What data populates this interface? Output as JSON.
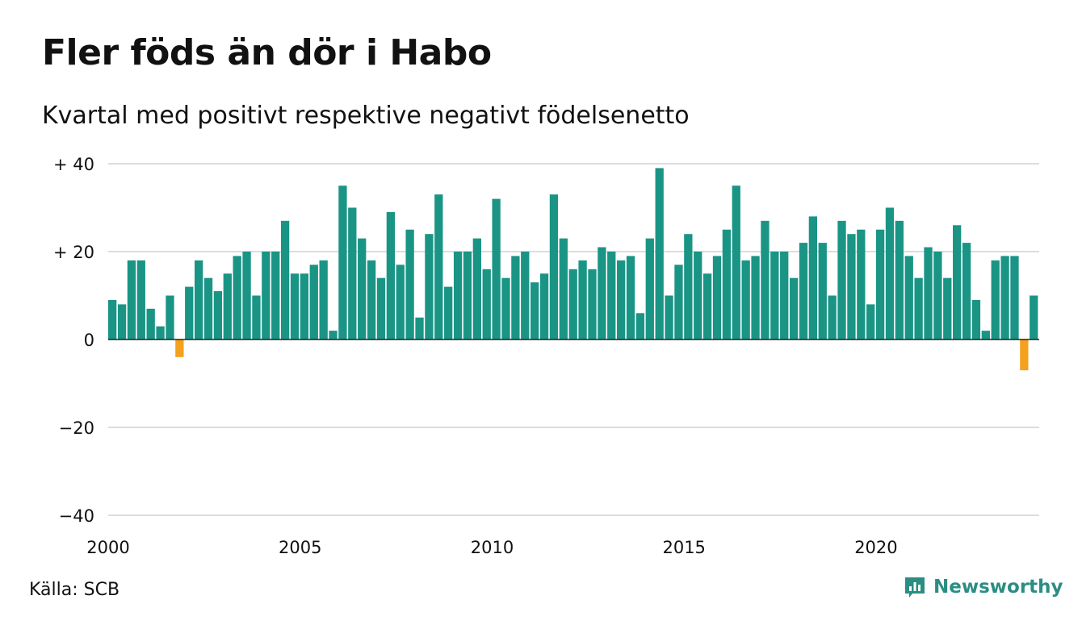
{
  "title": "Fler föds än dör i Habo",
  "subtitle": "Kvartal med positivt respektive negativt födelsenetto",
  "source": "Källa: SCB",
  "brand": {
    "name": "Newsworthy",
    "icon": "chart-bubble-icon",
    "color": "#2b8d83"
  },
  "chart_data": {
    "type": "bar",
    "x_start": 2000.0,
    "x_step": 0.25,
    "ylim": [
      -40,
      40
    ],
    "xlim": [
      2000,
      2024.25
    ],
    "y_ticks": [
      40,
      20,
      0,
      -20,
      -40
    ],
    "y_tick_labels": [
      "+ 40",
      "+ 20",
      "0",
      "−20",
      "−40"
    ],
    "x_ticks": [
      2000,
      2005,
      2010,
      2015,
      2020
    ],
    "x_tick_labels": [
      "2000",
      "2005",
      "2010",
      "2015",
      "2020"
    ],
    "grid": true,
    "positive_color": "#1a9585",
    "negative_color": "#f4a11d",
    "values": [
      9,
      8,
      18,
      18,
      7,
      3,
      10,
      -4,
      12,
      18,
      14,
      11,
      15,
      19,
      20,
      10,
      20,
      20,
      27,
      15,
      15,
      17,
      18,
      2,
      35,
      30,
      23,
      18,
      14,
      29,
      17,
      25,
      5,
      24,
      33,
      12,
      20,
      20,
      23,
      16,
      32,
      14,
      19,
      20,
      13,
      15,
      33,
      23,
      16,
      18,
      16,
      21,
      20,
      18,
      19,
      6,
      23,
      39,
      10,
      17,
      24,
      20,
      15,
      19,
      25,
      35,
      18,
      19,
      27,
      20,
      20,
      14,
      22,
      28,
      22,
      10,
      27,
      24,
      25,
      8,
      25,
      30,
      27,
      19,
      14,
      21,
      20,
      14,
      26,
      22,
      9,
      2,
      18,
      19,
      19,
      -7,
      10
    ]
  }
}
